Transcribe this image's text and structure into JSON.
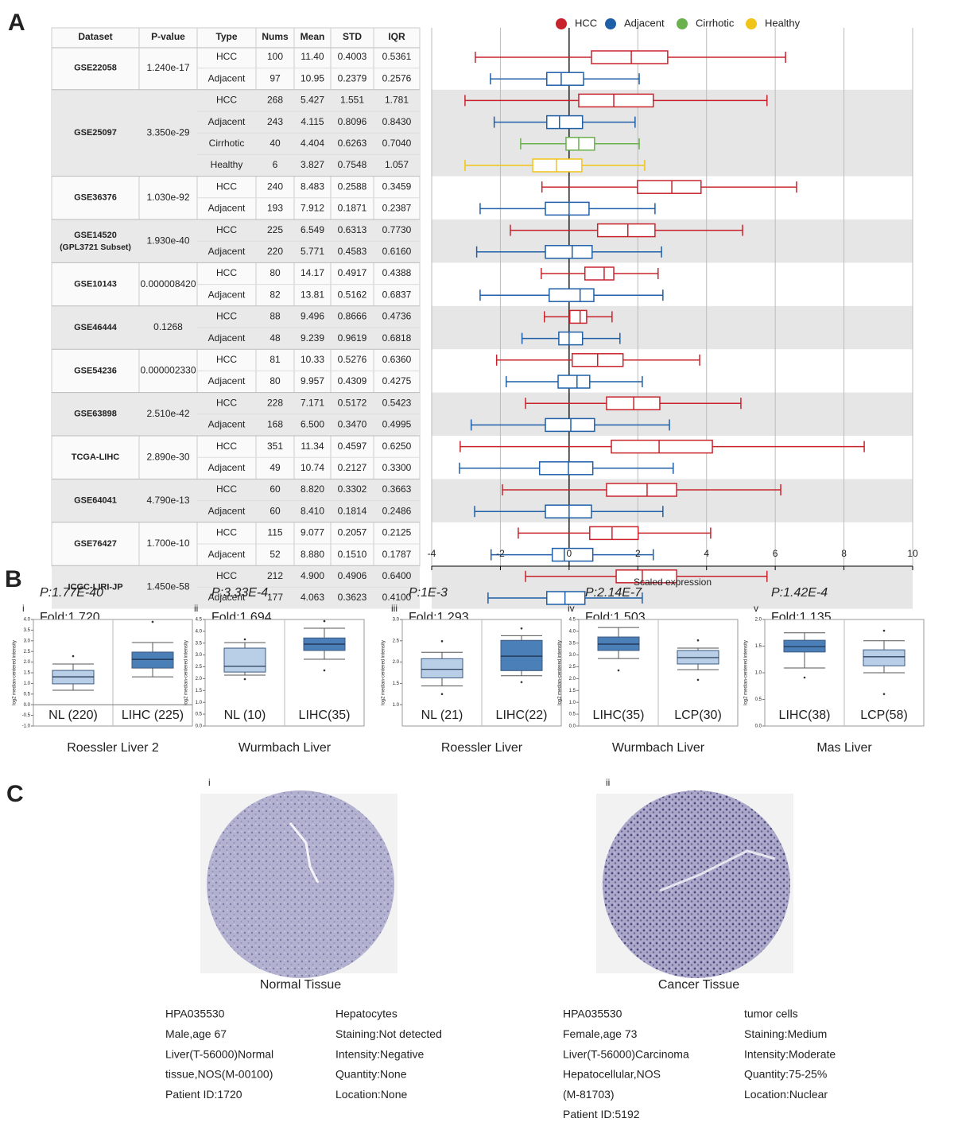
{
  "panel_a": {
    "label": "A",
    "legend": [
      {
        "name": "HCC",
        "color": "#c8232c"
      },
      {
        "name": "Adjacent",
        "color": "#1f5fa8"
      },
      {
        "name": "Cirrhotic",
        "color": "#6ab04c"
      },
      {
        "name": "Healthy",
        "color": "#f0c419"
      }
    ],
    "columns": [
      "Dataset",
      "P-value",
      "Type",
      "Nums",
      "Mean",
      "STD",
      "IQR"
    ],
    "datasets": [
      {
        "name": "GSE22058",
        "pvalue": "1.240e-17",
        "rows": [
          [
            "HCC",
            "100",
            "11.40",
            "0.4003",
            "0.5361"
          ],
          [
            "Adjacent",
            "97",
            "10.95",
            "0.2379",
            "0.2576"
          ]
        ],
        "boxes": [
          [
            -2.73,
            0.65,
            1.81,
            2.87,
            6.3
          ],
          [
            -2.29,
            -0.65,
            -0.23,
            0.42,
            2.04
          ]
        ]
      },
      {
        "name": "GSE25097",
        "pvalue": "3.350e-29",
        "rows": [
          [
            "HCC",
            "268",
            "5.427",
            "1.551",
            "1.781"
          ],
          [
            "Adjacent",
            "243",
            "4.115",
            "0.8096",
            "0.8430"
          ],
          [
            "Cirrhotic",
            "40",
            "4.404",
            "0.6263",
            "0.7040"
          ],
          [
            "Healthy",
            "6",
            "3.827",
            "0.7548",
            "1.057"
          ]
        ],
        "boxes": [
          [
            -3.03,
            0.28,
            1.3,
            2.45,
            5.76
          ],
          [
            -2.18,
            -0.65,
            -0.28,
            0.39,
            1.92
          ],
          [
            -1.41,
            -0.09,
            0.28,
            0.74,
            2.04
          ],
          [
            -3.03,
            -1.06,
            -0.37,
            0.37,
            2.2
          ]
        ]
      },
      {
        "name": "GSE36376",
        "pvalue": "1.030e-92",
        "rows": [
          [
            "HCC",
            "240",
            "8.483",
            "0.2588",
            "0.3459"
          ],
          [
            "Adjacent",
            "193",
            "7.912",
            "0.1871",
            "0.2387"
          ]
        ],
        "boxes": [
          [
            -0.79,
            1.99,
            2.99,
            3.84,
            6.62
          ],
          [
            -2.59,
            -0.69,
            0,
            0.58,
            2.5
          ]
        ]
      },
      {
        "name": "GSE14520",
        "subtitle": "(GPL3721 Subset)",
        "pvalue": "1.930e-40",
        "rows": [
          [
            "HCC",
            "225",
            "6.549",
            "0.6313",
            "0.7730"
          ],
          [
            "Adjacent",
            "220",
            "5.771",
            "0.4583",
            "0.6160"
          ]
        ],
        "boxes": [
          [
            -1.71,
            0.83,
            1.71,
            2.5,
            5.05
          ],
          [
            -2.69,
            -0.69,
            0.09,
            0.67,
            2.69
          ]
        ]
      },
      {
        "name": "GSE10143",
        "pvalue": "0.000008420",
        "rows": [
          [
            "HCC",
            "80",
            "14.17",
            "0.4917",
            "0.4388"
          ],
          [
            "Adjacent",
            "82",
            "13.81",
            "0.5162",
            "0.6837"
          ]
        ],
        "boxes": [
          [
            -0.81,
            0.46,
            1.02,
            1.3,
            2.59
          ],
          [
            -2.59,
            -0.58,
            0.32,
            0.72,
            2.73
          ]
        ]
      },
      {
        "name": "GSE46444",
        "pvalue": "0.1268",
        "rows": [
          [
            "HCC",
            "88",
            "9.496",
            "0.8666",
            "0.4736"
          ],
          [
            "Adjacent",
            "48",
            "9.239",
            "0.9619",
            "0.6818"
          ]
        ],
        "boxes": [
          [
            -0.72,
            0.02,
            0.32,
            0.51,
            1.25
          ],
          [
            -1.37,
            -0.3,
            0,
            0.39,
            1.48
          ]
        ]
      },
      {
        "name": "GSE54236",
        "pvalue": "0.000002330",
        "rows": [
          [
            "HCC",
            "81",
            "10.33",
            "0.5276",
            "0.6360"
          ],
          [
            "Adjacent",
            "80",
            "9.957",
            "0.4309",
            "0.4275"
          ]
        ],
        "boxes": [
          [
            -2.11,
            0.09,
            0.83,
            1.57,
            3.8
          ],
          [
            -1.83,
            -0.32,
            0.23,
            0.6,
            2.13
          ]
        ]
      },
      {
        "name": "GSE63898",
        "pvalue": "2.510e-42",
        "rows": [
          [
            "HCC",
            "228",
            "7.171",
            "0.5172",
            "0.5423"
          ],
          [
            "Adjacent",
            "168",
            "6.500",
            "0.3470",
            "0.4995"
          ]
        ],
        "boxes": [
          [
            -1.27,
            1.09,
            1.88,
            2.64,
            5.0
          ],
          [
            -2.85,
            -0.69,
            0.05,
            0.74,
            2.92
          ]
        ]
      },
      {
        "name": "TCGA-LIHC",
        "pvalue": "2.890e-30",
        "rows": [
          [
            "HCC",
            "351",
            "11.34",
            "0.4597",
            "0.6250"
          ],
          [
            "Adjacent",
            "49",
            "10.74",
            "0.2127",
            "0.3300"
          ]
        ],
        "boxes": [
          [
            -3.17,
            1.23,
            2.62,
            4.17,
            8.59
          ],
          [
            -3.19,
            -0.86,
            -0.02,
            0.69,
            3.03
          ]
        ]
      },
      {
        "name": "GSE64041",
        "pvalue": "4.790e-13",
        "rows": [
          [
            "HCC",
            "60",
            "8.820",
            "0.3302",
            "0.3663"
          ],
          [
            "Adjacent",
            "60",
            "8.410",
            "0.1814",
            "0.2486"
          ]
        ],
        "boxes": [
          [
            -1.94,
            1.09,
            2.27,
            3.13,
            6.16
          ],
          [
            -2.75,
            -0.69,
            0,
            0.65,
            2.73
          ]
        ]
      },
      {
        "name": "GSE76427",
        "pvalue": "1.700e-10",
        "rows": [
          [
            "HCC",
            "115",
            "9.077",
            "0.2057",
            "0.2125"
          ],
          [
            "Adjacent",
            "52",
            "8.880",
            "0.1510",
            "0.1787"
          ]
        ],
        "boxes": [
          [
            -1.48,
            0.6,
            1.25,
            2.01,
            4.12
          ],
          [
            -2.27,
            -0.49,
            -0.14,
            0.69,
            2.45
          ]
        ]
      },
      {
        "name": "ICGC-LIRI-JP",
        "pvalue": "1.450e-58",
        "rows": [
          [
            "HCC",
            "212",
            "4.900",
            "0.4906",
            "0.6400"
          ],
          [
            "Adjacent",
            "177",
            "4.063",
            "0.3623",
            "0.4100"
          ]
        ],
        "boxes": [
          [
            -1.27,
            1.37,
            2.13,
            3.13,
            5.76
          ],
          [
            -2.36,
            -0.65,
            -0.12,
            0.46,
            2.13
          ]
        ]
      }
    ],
    "xlabel": "Scaled expression",
    "xlim": [
      -4,
      10
    ],
    "xticks": [
      -4,
      -2,
      0,
      2,
      4,
      6,
      8,
      10
    ]
  },
  "panel_b": {
    "label": "B",
    "ylabel": "log2 median-centered intensity",
    "plots": [
      {
        "numeral": "i",
        "p": "P:1.77E-40",
        "fold": "Fold:1.720",
        "title": "Roessler Liver 2",
        "ylim": [
          -1,
          4
        ],
        "zero_line": true,
        "yticks": [
          {
            "value": -1,
            "label": "-1.0"
          },
          -0.5,
          {
            "value": 0,
            "label": "0.0"
          },
          0.5,
          {
            "value": 1,
            "label": "1.0"
          },
          1.5,
          {
            "value": 2,
            "label": "2.0"
          },
          2.5,
          {
            "value": 3,
            "label": "3.0"
          },
          3.5,
          {
            "value": 4,
            "label": "4.0"
          }
        ],
        "groups": [
          {
            "name": "NL (220)",
            "color": "#b9cfe7",
            "box": [
              0.68,
              0.98,
              1.31,
              1.61,
              1.91
            ],
            "outliers": [
              2.28
            ]
          },
          {
            "name": "LIHC (225)",
            "color": "#4a7fb8",
            "box": [
              1.31,
              1.72,
              2.13,
              2.47,
              2.92
            ],
            "outliers": [
              3.89
            ]
          }
        ]
      },
      {
        "numeral": "ii",
        "p": "P:3.33E-4",
        "fold": "Fold:1.694",
        "title": "Wurmbach Liver",
        "ylim": [
          0,
          4.5
        ],
        "yticks": [
          {
            "value": 0,
            "label": "0.0"
          },
          0.5,
          {
            "value": 1,
            "label": "1.0"
          },
          1.5,
          {
            "value": 2,
            "label": "2.0"
          },
          2.5,
          {
            "value": 3,
            "label": "3.0"
          },
          3.5,
          {
            "value": 4,
            "label": "4.0"
          },
          4.5
        ],
        "groups": [
          {
            "name": "NL (10)",
            "color": "#b9cfe7",
            "box": [
              2.15,
              2.28,
              2.52,
              3.29,
              3.52
            ],
            "outliers": [
              3.66,
              1.98
            ]
          },
          {
            "name": "LIHC(35)",
            "color": "#4a7fb8",
            "box": [
              2.82,
              3.19,
              3.46,
              3.72,
              4.13
            ],
            "outliers": [
              4.43,
              2.35
            ]
          }
        ]
      },
      {
        "numeral": "iii",
        "p": "P:1E-3",
        "fold": "Fold:1.293",
        "title": "Roessler Liver",
        "ylim": [
          0.5,
          3
        ],
        "yticks": [
          {
            "value": 1,
            "label": "1.0"
          },
          1.5,
          {
            "value": 2,
            "label": "2.0"
          },
          2.5,
          {
            "value": 3,
            "label": "3.0"
          }
        ],
        "groups": [
          {
            "name": "NL (21)",
            "color": "#b9cfe7",
            "box": [
              1.44,
              1.63,
              1.83,
              2.08,
              2.23
            ],
            "outliers": [
              1.25,
              2.49
            ]
          },
          {
            "name": "LIHC(22)",
            "color": "#4a7fb8",
            "box": [
              1.68,
              1.8,
              2.14,
              2.51,
              2.62
            ],
            "outliers": [
              2.79,
              1.53
            ]
          }
        ]
      },
      {
        "numeral": "iv",
        "p": "P:2.14E-7",
        "fold": "Fold:1.503",
        "title": "Wurmbach Liver",
        "ylim": [
          0,
          4.5
        ],
        "yticks": [
          {
            "value": 0,
            "label": "0.0"
          },
          0.5,
          {
            "value": 1,
            "label": "1.0"
          },
          1.5,
          {
            "value": 2,
            "label": "2.0"
          },
          2.5,
          {
            "value": 3,
            "label": "3.0"
          },
          3.5,
          {
            "value": 4,
            "label": "4.0"
          },
          4.5
        ],
        "groups": [
          {
            "name": "LIHC(35)",
            "color": "#4a7fb8",
            "box": [
              2.85,
              3.19,
              3.46,
              3.76,
              4.16
            ],
            "outliers": [
              2.35
            ]
          },
          {
            "name": "LCP(30)",
            "color": "#b9cfe7",
            "box": [
              2.38,
              2.62,
              2.89,
              3.19,
              3.29
            ],
            "outliers": [
              3.62,
              1.95
            ]
          }
        ]
      },
      {
        "numeral": "v",
        "p": "P:1.42E-4",
        "fold": "Fold:1.135",
        "title": "Mas Liver",
        "ylim": [
          0,
          2
        ],
        "yticks": [
          {
            "value": 0,
            "label": "0.0"
          },
          0.5,
          {
            "value": 1,
            "label": "1.0"
          },
          1.5,
          {
            "value": 2,
            "label": "2.0"
          }
        ],
        "groups": [
          {
            "name": "LIHC(38)",
            "color": "#4a7fb8",
            "box": [
              1.09,
              1.39,
              1.49,
              1.61,
              1.75
            ],
            "outliers": [
              0.91
            ]
          },
          {
            "name": "LCP(58)",
            "color": "#b9cfe7",
            "box": [
              1.0,
              1.13,
              1.3,
              1.43,
              1.6
            ],
            "outliers": [
              1.79,
              0.6
            ]
          }
        ]
      }
    ]
  },
  "panel_c": {
    "label": "C",
    "samples": [
      {
        "numeral": "i",
        "caption": "Normal Tissue",
        "left": [
          "HPA035530",
          "Male,age 67",
          "Liver(T-56000)Normal",
          " tissue,NOS(M-00100)",
          "Patient ID:1720"
        ],
        "right": [
          "Hepatocytes",
          "Staining:Not detected",
          "Intensity:Negative",
          "Quantity:None",
          "Location:None"
        ]
      },
      {
        "numeral": "ii",
        "caption": "Cancer Tissue",
        "left": [
          "HPA035530",
          "Female,age 73",
          "Liver(T-56000)Carcinoma",
          " Hepatocellular,NOS",
          "(M-81703)",
          "Patient ID:5192"
        ],
        "right": [
          "tumor cells",
          "Staining:Medium",
          "Intensity:Moderate",
          "Quantity:75-25%",
          "Location:Nuclear"
        ]
      }
    ]
  }
}
